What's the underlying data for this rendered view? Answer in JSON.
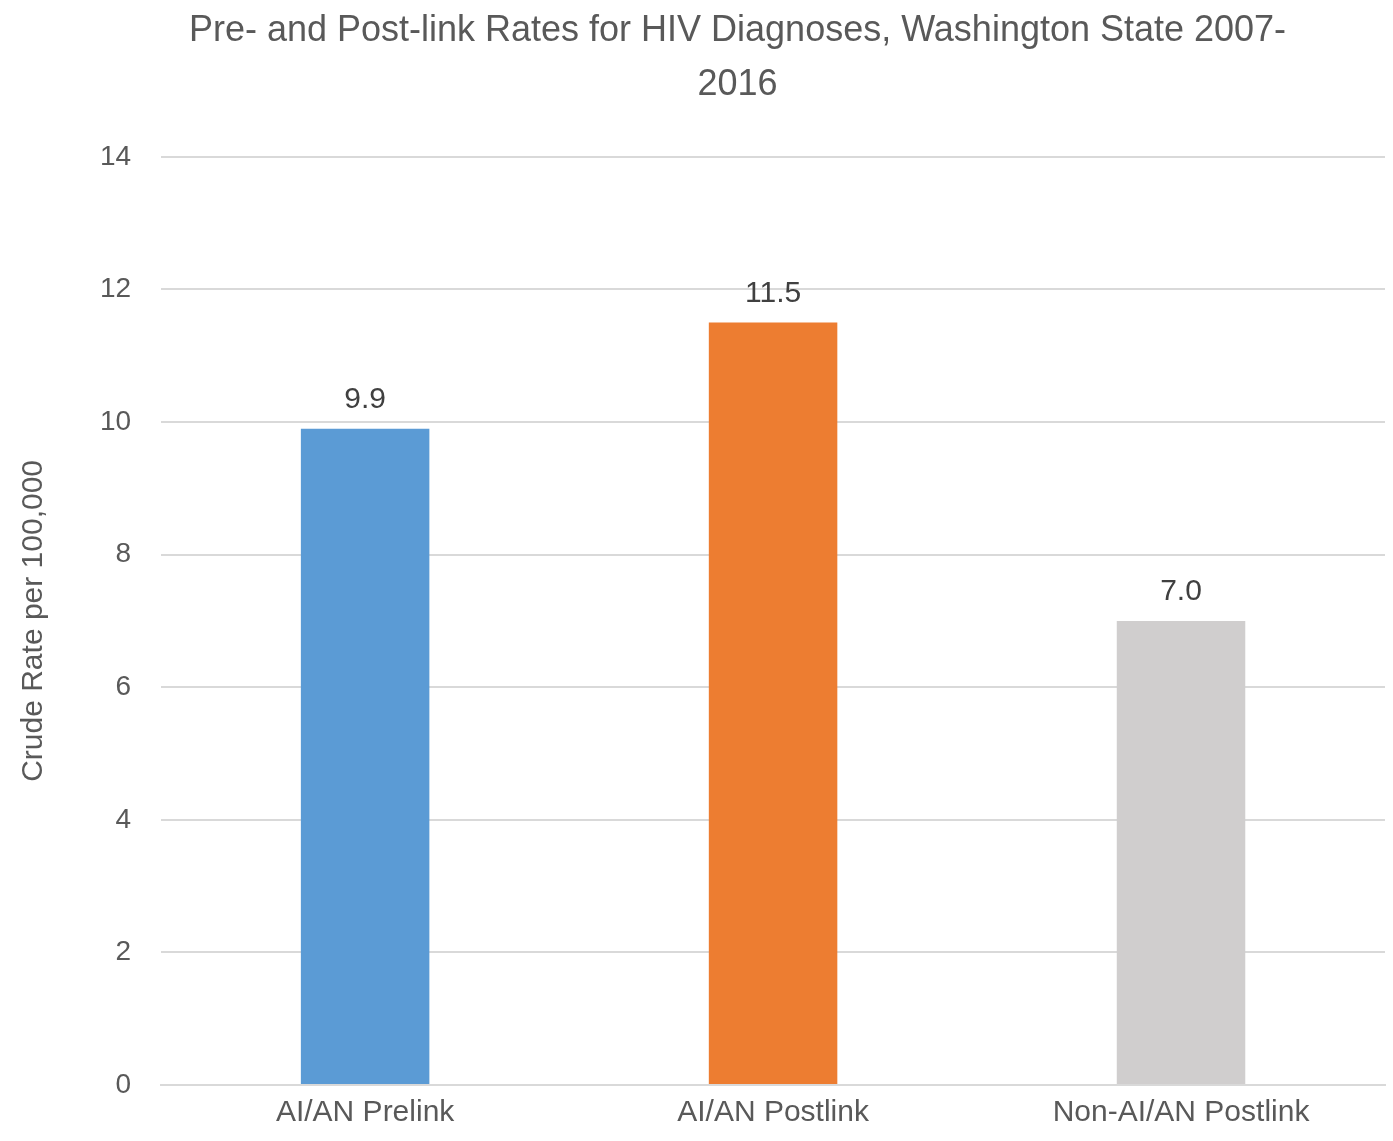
{
  "chart_data": {
    "type": "bar",
    "title": "Pre- and Post-link Rates for HIV Diagnoses, Washington State 2007-2016",
    "ylabel": "Crude Rate per 100,000",
    "categories": [
      "AI/AN Prelink",
      "AI/AN Postlink",
      "Non-AI/AN Postlink"
    ],
    "values": [
      9.9,
      11.5,
      7.0
    ],
    "value_labels": [
      "9.9",
      "11.5",
      "7.0"
    ],
    "colors": [
      "#5b9bd5",
      "#ed7d31",
      "#d0cece"
    ],
    "ylim": [
      0,
      14
    ],
    "yticks": [
      0,
      2,
      4,
      6,
      8,
      10,
      12,
      14
    ],
    "grid": "y",
    "legend": false
  }
}
